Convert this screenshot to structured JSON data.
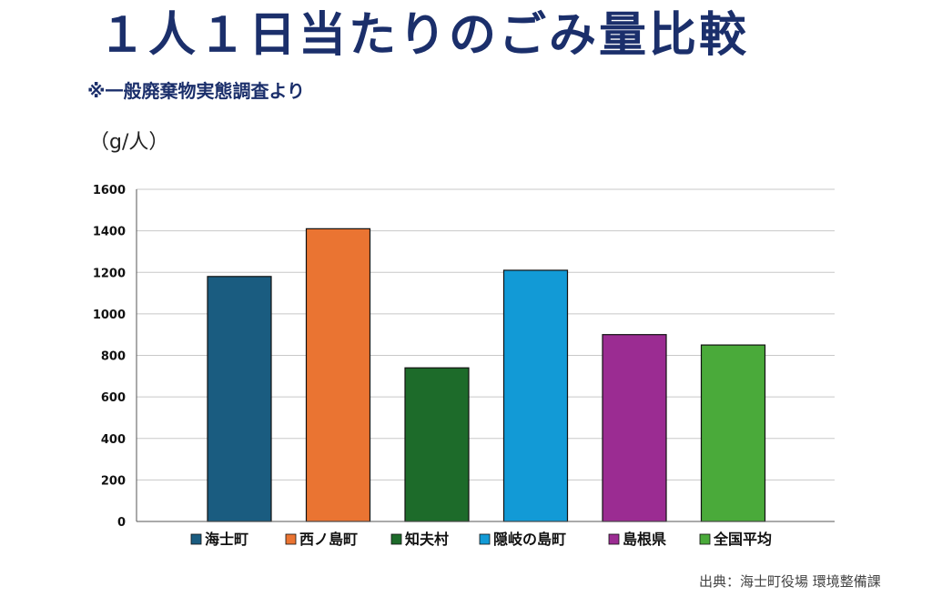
{
  "header": {
    "title": "１人１日当たりのごみ量比較",
    "subtitle": "※一般廃棄物実態調査より"
  },
  "footer": {
    "source": "出典：海士町役場 環境整備課"
  },
  "chart_data": {
    "type": "bar",
    "ylabel": "（g/人）",
    "ylim": [
      0,
      1600
    ],
    "yticks": [
      0,
      200,
      400,
      600,
      800,
      1000,
      1200,
      1400,
      1600
    ],
    "grid": true,
    "legend_position": "bottom",
    "categories": [
      "海士町",
      "西ノ島町",
      "知夫村",
      "隠岐の島町",
      "島根県",
      "全国平均"
    ],
    "values": [
      1180,
      1410,
      740,
      1210,
      900,
      850
    ],
    "colors": [
      "#1a5c80",
      "#ea7432",
      "#1d6b2a",
      "#129ad6",
      "#9b2c92",
      "#4aaa3a"
    ]
  }
}
